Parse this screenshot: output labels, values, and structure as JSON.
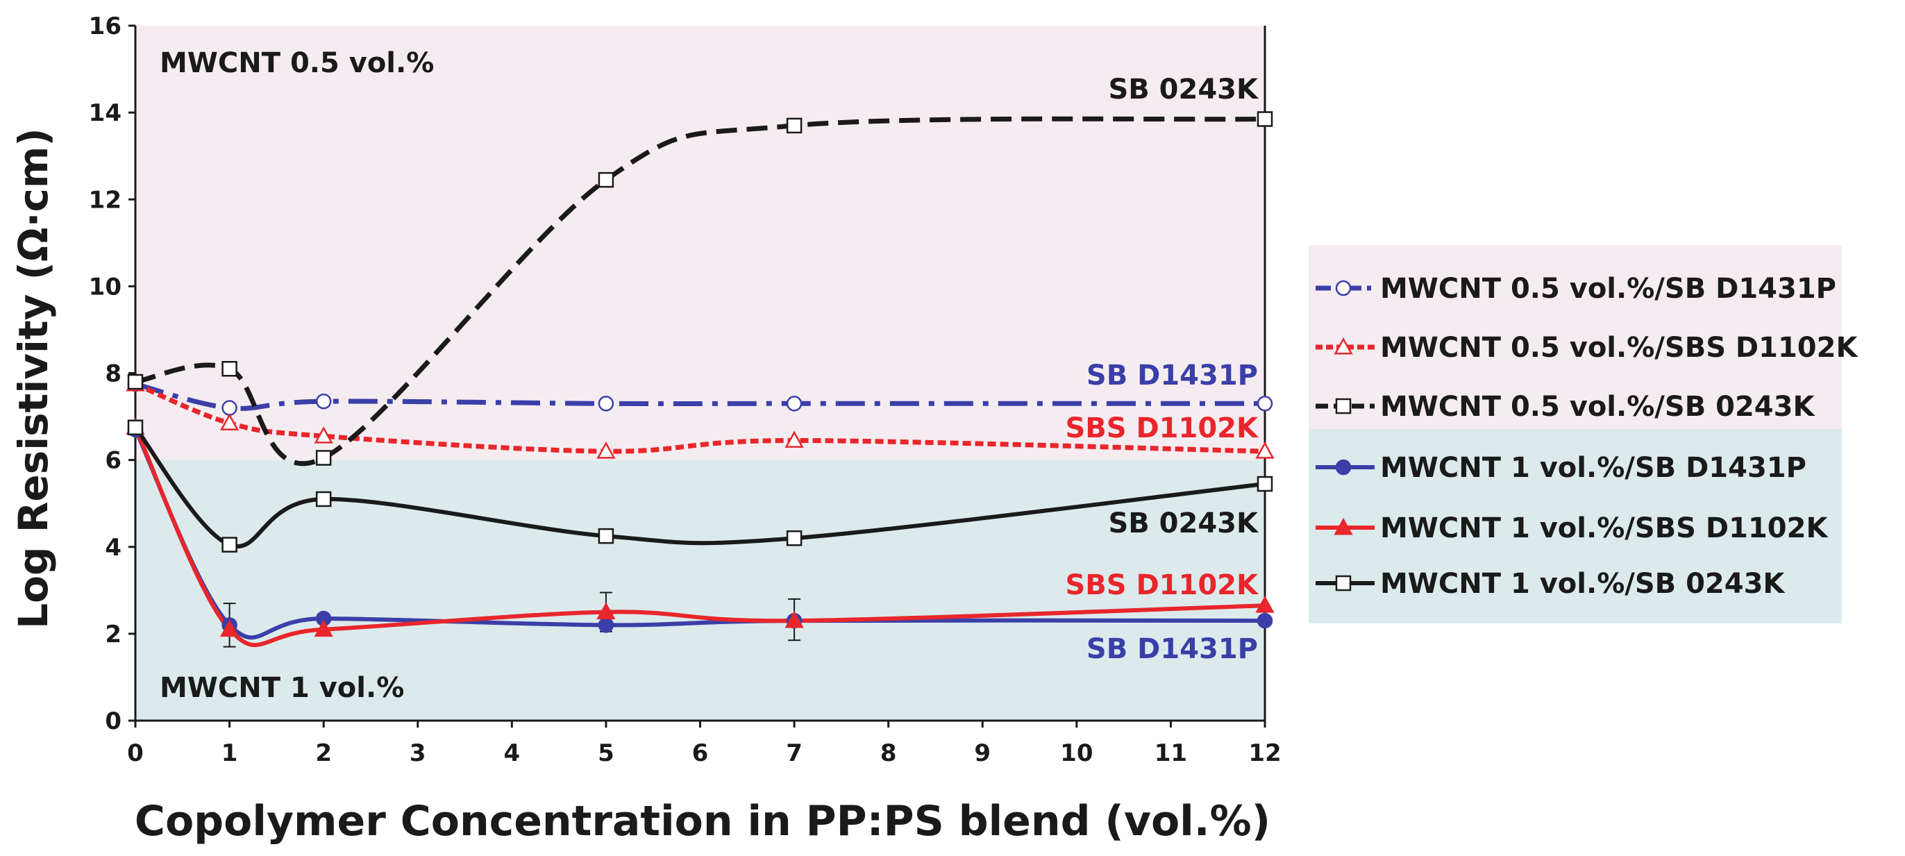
{
  "chart_data": {
    "type": "line",
    "title": "",
    "xlabel": "Copolymer Concentration in PP:PS blend (vol.%)",
    "ylabel": "Log Resistivity (Ω·cm)",
    "xlim": [
      0,
      12
    ],
    "ylim": [
      0,
      16
    ],
    "xticks": [
      "0",
      "1",
      "2",
      "3",
      "4",
      "5",
      "6",
      "7",
      "8",
      "9",
      "10",
      "11",
      "12"
    ],
    "yticks": [
      "0",
      "2",
      "4",
      "6",
      "8",
      "10",
      "12",
      "14",
      "16"
    ],
    "grid": false,
    "legend_position": "right",
    "regions": [
      {
        "name": "MWCNT 0.5 vol.%",
        "y_from": 6,
        "y_to": 16,
        "color": "#f5ecf1"
      },
      {
        "name": "MWCNT 1 vol.%",
        "y_from": 0,
        "y_to": 6,
        "color": "#dceaec"
      }
    ],
    "series": [
      {
        "name": "MWCNT 0.5 vol.%/SB D1431P",
        "color": "#3a3fa8",
        "dash": "dashdot",
        "marker": "circle-open",
        "x": [
          0,
          1,
          2,
          5,
          7,
          12
        ],
        "values": [
          7.75,
          7.2,
          7.35,
          7.3,
          7.3,
          7.3
        ]
      },
      {
        "name": "MWCNT 0.5 vol.%/SBS D1102K",
        "color": "#e8262b",
        "dash": "dot",
        "marker": "triangle-open",
        "x": [
          0,
          1,
          2,
          5,
          7,
          12
        ],
        "values": [
          7.75,
          6.85,
          6.55,
          6.2,
          6.45,
          6.2
        ]
      },
      {
        "name": "MWCNT 0.5 vol.%/SB 0243K",
        "color": "#1a1a1a",
        "dash": "dash",
        "marker": "square-open",
        "x": [
          0,
          1,
          2,
          5,
          7,
          12
        ],
        "values": [
          7.8,
          8.1,
          6.05,
          12.45,
          13.7,
          13.85
        ]
      },
      {
        "name": "MWCNT 1 vol.%/SB D1431P",
        "color": "#3a3fa8",
        "dash": "solid",
        "marker": "circle-filled",
        "x": [
          0,
          1,
          2,
          5,
          7,
          12
        ],
        "values": [
          6.7,
          2.2,
          2.35,
          2.2,
          2.3,
          2.3
        ]
      },
      {
        "name": "MWCNT 1 vol.%/SBS D1102K",
        "color": "#e8262b",
        "dash": "solid",
        "marker": "triangle-filled",
        "x": [
          0,
          1,
          2,
          5,
          7,
          12
        ],
        "values": [
          6.75,
          2.1,
          2.1,
          2.5,
          2.3,
          2.65
        ]
      },
      {
        "name": "MWCNT 1 vol.%/SB 0243K",
        "color": "#1a1a1a",
        "dash": "solid",
        "marker": "square-open",
        "x": [
          0,
          1,
          2,
          5,
          7,
          12
        ],
        "values": [
          6.75,
          4.05,
          5.1,
          4.25,
          4.2,
          5.45
        ]
      }
    ],
    "error_bars": [
      {
        "x": 1,
        "low": 1.7,
        "high": 2.7
      },
      {
        "x": 5,
        "low": 2.05,
        "high": 2.95
      },
      {
        "x": 7,
        "low": 1.85,
        "high": 2.8
      }
    ],
    "annotations": [
      {
        "text": "MWCNT 0.5 vol.%",
        "color": "#1a1a1a"
      },
      {
        "text": "MWCNT 1 vol.%",
        "color": "#1a1a1a"
      },
      {
        "text": "SB 0243K",
        "color": "#1a1a1a"
      },
      {
        "text": "SB D1431P",
        "color": "#3a3fa8"
      },
      {
        "text": "SBS D1102K",
        "color": "#e8262b"
      },
      {
        "text": "SB 0243K",
        "color": "#1a1a1a"
      },
      {
        "text": "SBS D1102K",
        "color": "#e8262b"
      },
      {
        "text": "SB D1431P",
        "color": "#3a3fa8"
      }
    ]
  }
}
